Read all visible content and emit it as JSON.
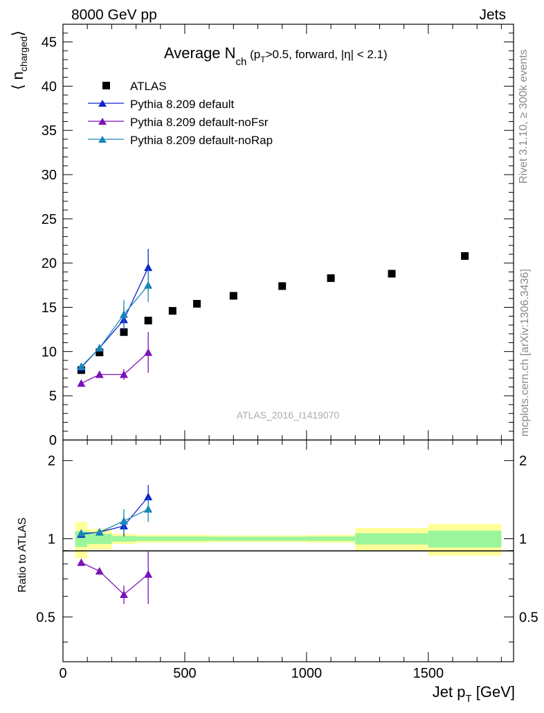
{
  "header": {
    "energy_label": "8000 GeV pp",
    "category_label": "Jets"
  },
  "side_labels": {
    "rivet": "Rivet 3.1.10, ≥ 300k events",
    "source": "mcplots.cern.ch [arXiv:1306.3436]"
  },
  "watermark": "ATLAS_2016_I1419070",
  "chart_data": [
    {
      "type": "scatter",
      "panel": "main",
      "title": {
        "main": "Average N",
        "sub": "ch",
        "rest1": " (p",
        "rest1_sub": "T",
        "rest2": ">0.5, forward, |η| < 2.1)"
      },
      "ylabel": "⟨ n",
      "ylabel_sub": "charged",
      "ylabel_close": "⟩",
      "xlim": [
        0,
        1850
      ],
      "ylim": [
        0,
        47
      ],
      "yticks": [
        0,
        5,
        10,
        15,
        20,
        25,
        30,
        35,
        40,
        45
      ],
      "ytick_labels": [
        "0",
        "5",
        "10",
        "15",
        "20",
        "25",
        "30",
        "35",
        "40",
        "45"
      ],
      "grid": false,
      "legend_position": "top-left",
      "series": [
        {
          "name": "ATLAS",
          "color": "#000000",
          "marker": "square",
          "x": [
            75,
            150,
            250,
            350,
            450,
            550,
            700,
            900,
            1100,
            1350,
            1650
          ],
          "y": [
            7.9,
            9.9,
            12.2,
            13.5,
            14.6,
            15.4,
            16.3,
            17.4,
            18.3,
            18.8,
            20.8
          ]
        },
        {
          "name": "Pythia 8.209 default",
          "color": "#0a23cc",
          "marker": "triangle",
          "x": [
            75,
            150,
            250,
            350
          ],
          "y": [
            8.2,
            10.4,
            13.6,
            19.5
          ],
          "err": [
            0.15,
            0.25,
            1.3,
            2.1
          ]
        },
        {
          "name": "Pythia 8.209 default-noFsr",
          "color": "#7b12b8",
          "marker": "triangle",
          "x": [
            75,
            150,
            250,
            350
          ],
          "y": [
            6.4,
            7.4,
            7.4,
            9.9
          ],
          "err": [
            0.15,
            0.2,
            0.6,
            2.3
          ]
        },
        {
          "name": "Pythia 8.209 default-noRap",
          "color": "#1a86b8",
          "marker": "triangle",
          "x": [
            75,
            150,
            250,
            350
          ],
          "y": [
            8.3,
            10.4,
            14.2,
            17.5
          ],
          "err": [
            0.15,
            0.25,
            1.6,
            1.9
          ]
        }
      ]
    },
    {
      "type": "scatter",
      "panel": "ratio",
      "ylabel": "Ratio to ATLAS",
      "xlabel": "Jet p",
      "xlabel_sub": "T",
      "xlabel_unit": " [GeV]",
      "xlim": [
        0,
        1850
      ],
      "ylim": [
        0.336,
        2.4
      ],
      "xticks": [
        0,
        500,
        1000,
        1500
      ],
      "xtick_labels": [
        "0",
        "500",
        "1000",
        "1500"
      ],
      "yticks": [
        0.5,
        1,
        2
      ],
      "ytick_labels": [
        "0.5",
        "1",
        "2"
      ],
      "bands": {
        "bins": [
          [
            50,
            100
          ],
          [
            100,
            200
          ],
          [
            200,
            300
          ],
          [
            300,
            400
          ],
          [
            400,
            500
          ],
          [
            500,
            600
          ],
          [
            600,
            800
          ],
          [
            800,
            1000
          ],
          [
            1000,
            1200
          ],
          [
            1200,
            1500
          ],
          [
            1500,
            1800
          ]
        ],
        "inner": [
          0.07,
          0.045,
          0.025,
          0.02,
          0.02,
          0.02,
          0.018,
          0.018,
          0.02,
          0.05,
          0.075
        ],
        "outer": [
          0.16,
          0.09,
          0.045,
          0.035,
          0.035,
          0.035,
          0.03,
          0.03,
          0.035,
          0.1,
          0.14
        ],
        "inner_color": "#9bf59b",
        "outer_color": "#ffff99"
      },
      "series": [
        {
          "name": "Pythia 8.209 default",
          "color": "#0a23cc",
          "x": [
            75,
            150,
            250,
            350
          ],
          "y": [
            1.04,
            1.06,
            1.12,
            1.45
          ],
          "err": [
            0.02,
            0.025,
            0.1,
            0.16
          ]
        },
        {
          "name": "Pythia 8.209 default-noFsr",
          "color": "#7b12b8",
          "x": [
            75,
            150,
            250,
            350
          ],
          "y": [
            0.81,
            0.75,
            0.61,
            0.73
          ],
          "err": [
            0.02,
            0.02,
            0.05,
            0.17
          ]
        },
        {
          "name": "Pythia 8.209 default-noRap",
          "color": "#1a86b8",
          "x": [
            75,
            150,
            250,
            350
          ],
          "y": [
            1.05,
            1.06,
            1.17,
            1.3
          ],
          "err": [
            0.02,
            0.025,
            0.13,
            0.14
          ]
        }
      ]
    }
  ]
}
